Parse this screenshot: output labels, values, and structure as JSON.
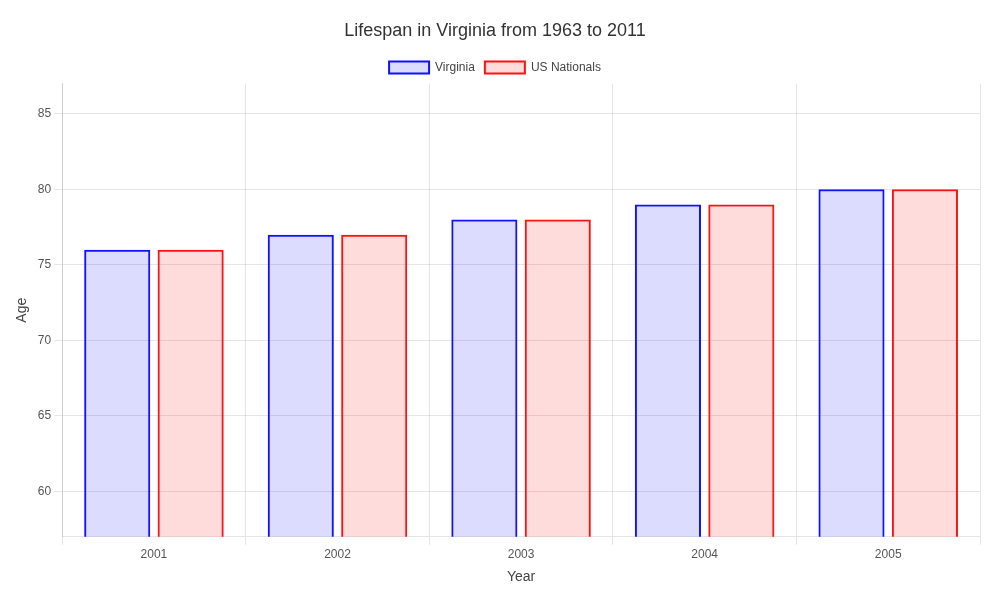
{
  "chart_data": {
    "type": "bar",
    "title": "Lifespan in Virginia from 1963 to 2011",
    "x_label": "Year",
    "y_label": "Age",
    "categories": [
      "2001",
      "2002",
      "2003",
      "2004",
      "2005"
    ],
    "series": [
      {
        "name": "Virginia",
        "color": "#1111ff",
        "values": [
          76,
          77,
          78,
          79,
          80
        ]
      },
      {
        "name": "US Nationals",
        "color": "#ff1111",
        "values": [
          76,
          77,
          78,
          79,
          80
        ]
      }
    ],
    "ylim": [
      57,
      87
    ],
    "yticks": [
      60,
      65,
      70,
      75,
      80,
      85
    ],
    "grid": true,
    "legend": "top"
  }
}
